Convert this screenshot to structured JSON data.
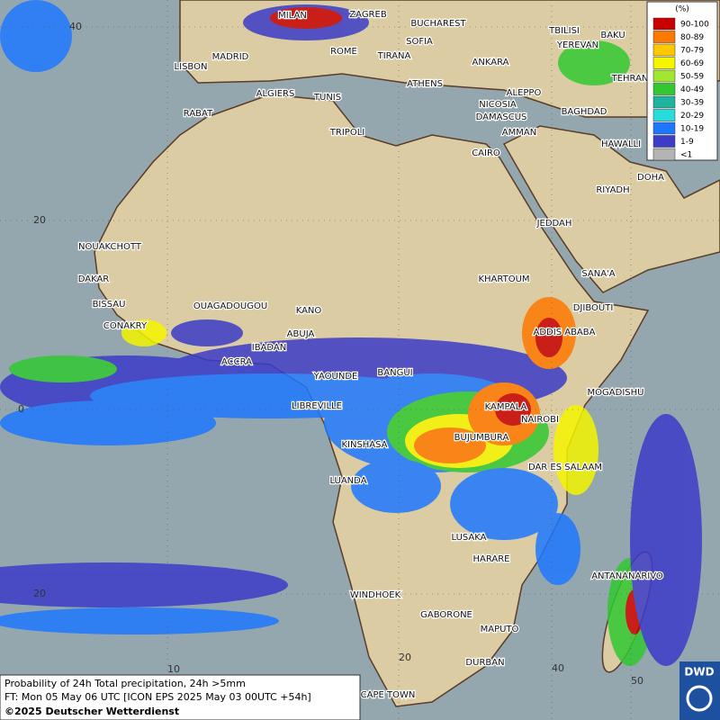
{
  "header": {
    "title": "Probability of 24h Total precipitation, 24h >5mm",
    "forecast": "FT: Mon 05 May 06 UTC [ICON EPS 2025 May 03 00UTC +54h]",
    "credit": "©2025 Deutscher Wetterdienst",
    "logo": "DWD"
  },
  "legend": {
    "title": "(%)",
    "items": [
      {
        "label": "90-100",
        "color": "#c80000"
      },
      {
        "label": "80-89",
        "color": "#ff7800"
      },
      {
        "label": "70-79",
        "color": "#ffc800"
      },
      {
        "label": "60-69",
        "color": "#f5f500"
      },
      {
        "label": "50-59",
        "color": "#a0e632"
      },
      {
        "label": "40-49",
        "color": "#32c832"
      },
      {
        "label": "30-39",
        "color": "#1eb4a0"
      },
      {
        "label": "20-29",
        "color": "#28dcdc"
      },
      {
        "label": "10-19",
        "color": "#1e78ff"
      },
      {
        "label": "1-9",
        "color": "#3c3cc8"
      },
      {
        "label": "<1",
        "color": "#b4b4b4"
      }
    ]
  },
  "cities": [
    "MILAN",
    "ZAGREB",
    "BUCHAREST",
    "TBILISI",
    "BAKU",
    "SOFIA",
    "YEREVAN",
    "MADRID",
    "ROME",
    "TIRANA",
    "ANKARA",
    "LISBON",
    "TEHRAN",
    "ATHENS",
    "ALGIERS",
    "TUNIS",
    "ALEPPO",
    "NICOSIA",
    "BAGHDAD",
    "RABAT",
    "DAMASCUS",
    "AMMAN",
    "TRIPOLI",
    "HAWALLI",
    "CAIRO",
    "DOHA",
    "RIYADH",
    "JEDDAH",
    "NOUAKCHOTT",
    "KHARTOUM",
    "SANA'A",
    "DAKAR",
    "BISSAU",
    "OUAGADOUGOU",
    "DJIBOUTI",
    "KANO",
    "CONAKRY",
    "ABUJA",
    "ADDIS ABABA",
    "IBADAN",
    "ACCRA",
    "YAOUNDE",
    "BANGUI",
    "MOGADISHU",
    "LIBREVILLE",
    "KAMPALA",
    "NAIROBI",
    "BUJUMBURA",
    "KINSHASA",
    "DAR ES SALAAM",
    "LUANDA",
    "LUSAKA",
    "HARARE",
    "ANTANANARIVO",
    "WINDHOEK",
    "GABORONE",
    "MAPUTO",
    "DURBAN",
    "CAPE TOWN"
  ],
  "grid_labels": [
    "40",
    "20",
    "0",
    "20",
    "10",
    "20",
    "40",
    "50"
  ]
}
